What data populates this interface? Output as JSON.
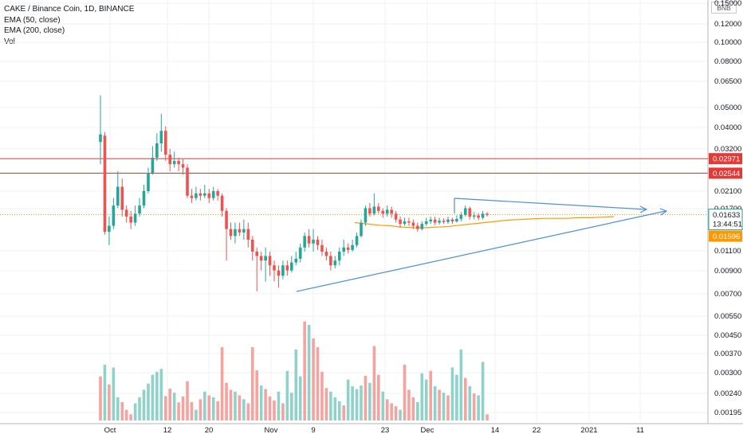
{
  "legend": {
    "title": "CAKE / Binance Coin, 1D, BINANCE",
    "ema50": "EMA (50, close)",
    "ema200": "EMA (200, close)",
    "vol": "Vol"
  },
  "currency_badge": "BNB",
  "colors": {
    "up": "#26a69a",
    "down": "#ef5350",
    "vol_up": "#8fd2ca",
    "vol_down": "#f5a3a0",
    "ema50": "#ff9800",
    "trendline": "#4a90d9",
    "resistance": "#e53935",
    "price_line": "#ff9800",
    "grid": "#eef0f3"
  },
  "chart_data": {
    "type": "candlestick",
    "title": "CAKE / Binance Coin, 1D, BINANCE",
    "y_scale": "log",
    "price_ticks": [
      "0.15000",
      "0.12000",
      "0.10000",
      "0.08000",
      "0.06500",
      "0.05000",
      "0.04000",
      "0.03200",
      "0.02100",
      "0.01700",
      "0.01100",
      "0.00900",
      "0.00700",
      "0.00550",
      "0.00450",
      "0.00370",
      "0.00300",
      "0.00240",
      "0.00195"
    ],
    "date_ticks": [
      "Oct",
      "12",
      "20",
      "Nov",
      "9",
      "23",
      "Dec",
      "14",
      "22",
      "2021",
      "11"
    ],
    "horizontal_levels": [
      {
        "value": "0.02971",
        "color": "#e53935"
      },
      {
        "value": "0.02544",
        "color": "#e53935"
      }
    ],
    "last_price": "0.01633",
    "countdown": "13:44:51",
    "ema50_last": "0.01596",
    "candles": [
      [
        0.0355,
        0.0385,
        0.0585,
        0.028
      ],
      [
        0.038,
        0.0136,
        0.0395,
        0.0132
      ],
      [
        0.0136,
        0.0145,
        0.016,
        0.0118
      ],
      [
        0.0145,
        0.018,
        0.0195,
        0.014
      ],
      [
        0.018,
        0.022,
        0.026,
        0.0175
      ],
      [
        0.022,
        0.0172,
        0.024,
        0.016
      ],
      [
        0.0172,
        0.016,
        0.018,
        0.015
      ],
      [
        0.016,
        0.015,
        0.017,
        0.014
      ],
      [
        0.015,
        0.0165,
        0.018,
        0.0145
      ],
      [
        0.0165,
        0.018,
        0.0195,
        0.016
      ],
      [
        0.018,
        0.021,
        0.0225,
        0.0175
      ],
      [
        0.021,
        0.0255,
        0.027,
        0.0205
      ],
      [
        0.0255,
        0.03,
        0.034,
        0.025
      ],
      [
        0.03,
        0.035,
        0.039,
        0.029
      ],
      [
        0.035,
        0.04,
        0.048,
        0.032
      ],
      [
        0.04,
        0.031,
        0.042,
        0.029
      ],
      [
        0.031,
        0.028,
        0.033,
        0.026
      ],
      [
        0.028,
        0.029,
        0.032,
        0.027
      ],
      [
        0.029,
        0.028,
        0.03,
        0.026
      ],
      [
        0.028,
        0.027,
        0.0295,
        0.025
      ],
      [
        0.027,
        0.02,
        0.028,
        0.0195
      ],
      [
        0.02,
        0.0195,
        0.0215,
        0.0185
      ],
      [
        0.0195,
        0.0205,
        0.022,
        0.019
      ],
      [
        0.0205,
        0.02,
        0.0215,
        0.019
      ],
      [
        0.02,
        0.0205,
        0.0225,
        0.0195
      ],
      [
        0.0205,
        0.0195,
        0.0215,
        0.0185
      ],
      [
        0.0195,
        0.021,
        0.022,
        0.019
      ],
      [
        0.021,
        0.02,
        0.0215,
        0.019
      ],
      [
        0.02,
        0.017,
        0.0205,
        0.016
      ],
      [
        0.017,
        0.014,
        0.0175,
        0.01
      ],
      [
        0.014,
        0.013,
        0.015,
        0.0125
      ],
      [
        0.013,
        0.014,
        0.015,
        0.012
      ],
      [
        0.014,
        0.0135,
        0.015,
        0.013
      ],
      [
        0.0135,
        0.014,
        0.0155,
        0.0125
      ],
      [
        0.014,
        0.0125,
        0.015,
        0.0115
      ],
      [
        0.0125,
        0.011,
        0.013,
        0.01
      ],
      [
        0.011,
        0.0105,
        0.0115,
        0.0072
      ],
      [
        0.0105,
        0.01,
        0.011,
        0.009
      ],
      [
        0.01,
        0.0105,
        0.0115,
        0.008
      ],
      [
        0.0105,
        0.0095,
        0.011,
        0.0085
      ],
      [
        0.0095,
        0.009,
        0.01,
        0.008
      ],
      [
        0.009,
        0.0085,
        0.0095,
        0.0075
      ],
      [
        0.0085,
        0.0095,
        0.01,
        0.0082
      ],
      [
        0.0095,
        0.009,
        0.01,
        0.0085
      ],
      [
        0.009,
        0.0098,
        0.0105,
        0.0088
      ],
      [
        0.0098,
        0.0102,
        0.011,
        0.0095
      ],
      [
        0.0102,
        0.0115,
        0.012,
        0.0098
      ],
      [
        0.0115,
        0.013,
        0.0135,
        0.011
      ],
      [
        0.013,
        0.012,
        0.014,
        0.0115
      ],
      [
        0.012,
        0.0125,
        0.014,
        0.011
      ],
      [
        0.0125,
        0.0118,
        0.013,
        0.0112
      ],
      [
        0.0118,
        0.011,
        0.0125,
        0.0105
      ],
      [
        0.011,
        0.0105,
        0.0115,
        0.01
      ],
      [
        0.0105,
        0.0095,
        0.011,
        0.009
      ],
      [
        0.0095,
        0.01,
        0.0105,
        0.0092
      ],
      [
        0.01,
        0.011,
        0.0115,
        0.0095
      ],
      [
        0.011,
        0.0115,
        0.0125,
        0.0105
      ],
      [
        0.0115,
        0.0112,
        0.012,
        0.0108
      ],
      [
        0.0112,
        0.0118,
        0.0125,
        0.011
      ],
      [
        0.0118,
        0.013,
        0.0135,
        0.0115
      ],
      [
        0.013,
        0.015,
        0.0155,
        0.0128
      ],
      [
        0.015,
        0.0175,
        0.018,
        0.0145
      ],
      [
        0.0175,
        0.0165,
        0.0185,
        0.016
      ],
      [
        0.0165,
        0.0178,
        0.0205,
        0.0162
      ],
      [
        0.0178,
        0.017,
        0.0185,
        0.0165
      ],
      [
        0.017,
        0.0165,
        0.0175,
        0.0158
      ],
      [
        0.0165,
        0.0172,
        0.018,
        0.016
      ],
      [
        0.0172,
        0.0165,
        0.0178,
        0.0158
      ],
      [
        0.0165,
        0.0155,
        0.017,
        0.015
      ],
      [
        0.0155,
        0.0148,
        0.016,
        0.0142
      ],
      [
        0.0148,
        0.0152,
        0.0158,
        0.0145
      ],
      [
        0.0152,
        0.015,
        0.0158,
        0.0145
      ],
      [
        0.015,
        0.0145,
        0.0155,
        0.014
      ],
      [
        0.0145,
        0.014,
        0.015,
        0.0136
      ],
      [
        0.014,
        0.0148,
        0.0152,
        0.0138
      ],
      [
        0.0148,
        0.0152,
        0.0158,
        0.0145
      ],
      [
        0.0152,
        0.0155,
        0.016,
        0.0148
      ],
      [
        0.0155,
        0.015,
        0.016,
        0.0146
      ],
      [
        0.015,
        0.0153,
        0.0158,
        0.0147
      ],
      [
        0.0153,
        0.0151,
        0.0157,
        0.0148
      ],
      [
        0.0151,
        0.0155,
        0.016,
        0.0148
      ],
      [
        0.0155,
        0.0152,
        0.0158,
        0.0148
      ],
      [
        0.0152,
        0.0156,
        0.0162,
        0.015
      ],
      [
        0.0156,
        0.0163,
        0.0168,
        0.0152
      ],
      [
        0.0163,
        0.0175,
        0.018,
        0.016
      ],
      [
        0.0175,
        0.016,
        0.0178,
        0.0155
      ],
      [
        0.016,
        0.0162,
        0.0168,
        0.0155
      ],
      [
        0.0162,
        0.0158,
        0.0166,
        0.0154
      ],
      [
        0.0158,
        0.0165,
        0.017,
        0.0155
      ],
      [
        0.0165,
        0.0163,
        0.0168,
        0.016
      ]
    ],
    "volumes": [
      0.003,
      0.0034,
      0.00275,
      0.0033,
      0.0024,
      0.00228,
      0.0021,
      0.002,
      0.00225,
      0.0024,
      0.0026,
      0.00278,
      0.00305,
      0.00315,
      0.00325,
      0.00243,
      0.00263,
      0.00252,
      0.00227,
      0.00242,
      0.00285,
      0.00228,
      0.0021,
      0.00235,
      0.00255,
      0.00245,
      0.0024,
      0.0023,
      0.0041,
      0.0028,
      0.0026,
      0.00255,
      0.00245,
      0.00235,
      0.00225,
      0.0041,
      0.0032,
      0.00272,
      0.00262,
      0.00242,
      0.00232,
      0.00255,
      0.00225,
      0.00318,
      0.00252,
      0.004,
      0.003,
      0.0054,
      0.0052,
      0.0045,
      0.0041,
      0.00315,
      0.00265,
      0.00255,
      0.0024,
      0.0023,
      0.0022,
      0.0029,
      0.0027,
      0.00262,
      0.00272,
      0.00302,
      0.0028,
      0.00415,
      0.00305,
      0.00255,
      0.00235,
      0.00225,
      0.00218,
      0.0021,
      0.0034,
      0.0026,
      0.0024,
      0.00228,
      0.0031,
      0.0029,
      0.00318,
      0.0027,
      0.0026,
      0.00252,
      0.00245,
      0.0033,
      0.00305,
      0.004,
      0.00295,
      0.0027,
      0.0025,
      0.00245,
      0.0035,
      0.002
    ],
    "vol_up_flags": [
      0,
      1,
      0,
      1,
      1,
      0,
      0,
      0,
      1,
      1,
      1,
      1,
      1,
      1,
      1,
      0,
      0,
      1,
      0,
      0,
      0,
      0,
      1,
      0,
      1,
      0,
      1,
      0,
      0,
      0,
      0,
      1,
      0,
      1,
      0,
      0,
      0,
      1,
      0,
      0,
      0,
      1,
      0,
      1,
      1,
      1,
      1,
      0,
      1,
      0,
      0,
      0,
      0,
      1,
      1,
      1,
      0,
      1,
      1,
      1,
      1,
      0,
      1,
      0,
      0,
      1,
      0,
      0,
      0,
      1,
      0,
      0,
      0,
      1,
      1,
      1,
      0,
      1,
      0,
      1,
      0,
      1,
      1,
      1,
      0,
      1,
      0,
      1,
      1,
      0
    ],
    "ema50": [
      0.015,
      0.0148,
      0.0146,
      0.0145,
      0.0143,
      0.0142,
      0.0142,
      0.0143,
      0.0144,
      0.0146,
      0.0148,
      0.015,
      0.0152,
      0.0154,
      0.0155,
      0.0156,
      0.0157,
      0.0157,
      0.0157,
      0.0158,
      0.0158,
      0.0159,
      0.016
    ]
  }
}
